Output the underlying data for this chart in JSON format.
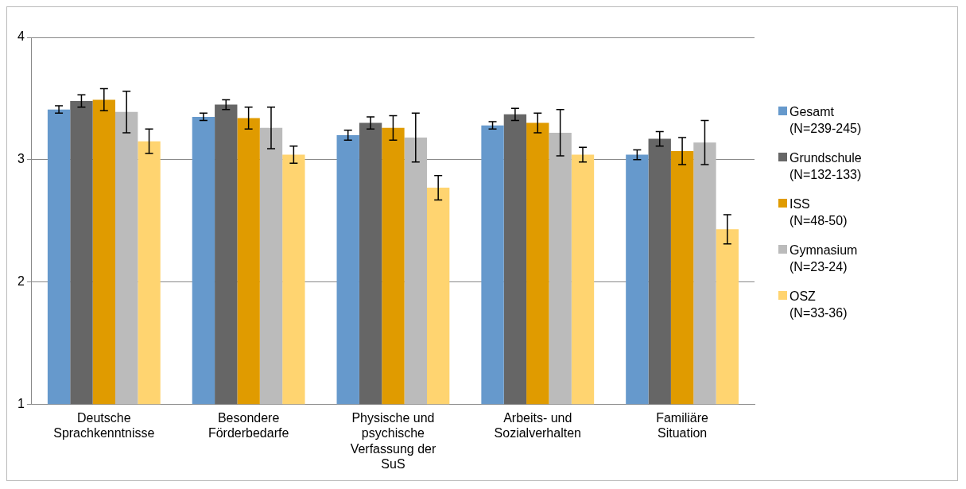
{
  "chart_data": {
    "type": "bar",
    "categories": [
      "Deutsche Sprachkenntnisse",
      "Besondere Förderbedarfe",
      "Physische und psychische Verfassung der SuS",
      "Arbeits- und Sozialverhalten",
      "Familiäre Situation"
    ],
    "series": [
      {
        "name": "Gesamt (N=239-245)",
        "color": "#6699cc",
        "values": [
          3.41,
          3.35,
          3.2,
          3.28,
          3.04
        ],
        "errors": [
          0.03,
          0.03,
          0.04,
          0.03,
          0.04
        ]
      },
      {
        "name": "Grundschule (N=132-133)",
        "color": "#666666",
        "values": [
          3.48,
          3.45,
          3.3,
          3.37,
          3.17
        ],
        "errors": [
          0.05,
          0.04,
          0.05,
          0.05,
          0.06
        ]
      },
      {
        "name": "ISS (N=48-50)",
        "color": "#e09b00",
        "values": [
          3.49,
          3.34,
          3.26,
          3.3,
          3.07
        ],
        "errors": [
          0.09,
          0.09,
          0.1,
          0.08,
          0.11
        ]
      },
      {
        "name": "Gymnasium (N=23-24)",
        "color": "#bbbbbb",
        "values": [
          3.39,
          3.26,
          3.18,
          3.22,
          3.14
        ],
        "errors": [
          0.17,
          0.17,
          0.2,
          0.19,
          0.18
        ]
      },
      {
        "name": "OSZ (N=33-36)",
        "color": "#ffd470",
        "values": [
          3.15,
          3.04,
          2.77,
          3.04,
          2.43
        ],
        "errors": [
          0.1,
          0.07,
          0.1,
          0.06,
          0.12
        ]
      }
    ],
    "ylim": [
      1,
      4
    ],
    "yticks": [
      1,
      2,
      3,
      4
    ],
    "grid": "y",
    "legend": "right"
  }
}
